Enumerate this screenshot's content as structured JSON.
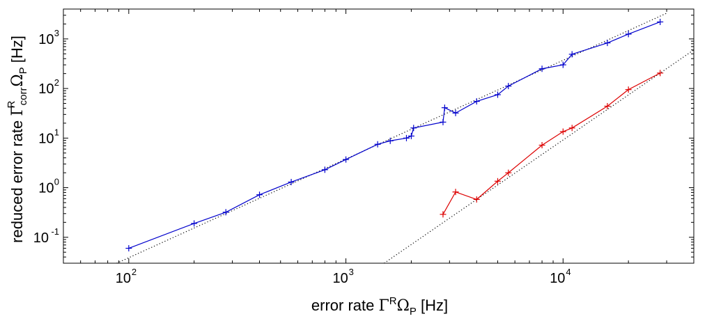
{
  "chart_data": {
    "type": "line",
    "x_scale": "log",
    "y_scale": "log",
    "xlim": [
      50,
      40000
    ],
    "ylim": [
      0.03,
      4000
    ],
    "grid": false,
    "legend": "none",
    "xlabel": {
      "pre": "error rate ",
      "gamma": "Γ",
      "sup": "R",
      "omega": "Ω",
      "sub": "P",
      "post": " [Hz]"
    },
    "ylabel": {
      "pre": "reduced error rate ",
      "gamma": "Γ",
      "sub1": "corr",
      "sup1": "R",
      "omega": "Ω",
      "sub2": "P",
      "post": " [Hz]"
    },
    "xticks": [
      {
        "value": 100,
        "base": "10",
        "exp": "2"
      },
      {
        "value": 1000,
        "base": "10",
        "exp": "3"
      },
      {
        "value": 10000,
        "base": "10",
        "exp": "4"
      }
    ],
    "yticks": [
      {
        "value": 0.1,
        "base": "10",
        "exp": "-1"
      },
      {
        "value": 1,
        "base": "10",
        "exp": "0"
      },
      {
        "value": 10,
        "base": "10",
        "exp": "1"
      },
      {
        "value": 100,
        "base": "10",
        "exp": "2"
      },
      {
        "value": 1000,
        "base": "10",
        "exp": "3"
      }
    ],
    "series": [
      {
        "color": "#0000cc",
        "marker": "+",
        "x": [
          100,
          200,
          280,
          400,
          560,
          800,
          1000,
          1400,
          1600,
          1900,
          2000,
          2050,
          2800,
          2850,
          3200,
          4000,
          5000,
          5600,
          8000,
          10000,
          11000,
          16000,
          20000,
          28000
        ],
        "y": [
          0.06,
          0.19,
          0.32,
          0.72,
          1.3,
          2.3,
          3.7,
          7.5,
          8.8,
          10,
          11,
          16,
          21,
          41,
          32,
          55,
          75,
          112,
          250,
          300,
          490,
          830,
          1250,
          2200
        ]
      },
      {
        "color": "#dd0000",
        "marker": "+",
        "x": [
          2800,
          3200,
          4000,
          5000,
          5600,
          8000,
          10000,
          11000,
          16000,
          20000,
          28000
        ],
        "y": [
          0.29,
          0.82,
          0.58,
          1.35,
          2.0,
          7.2,
          13.5,
          16,
          44,
          95,
          205
        ]
      }
    ],
    "reference_lines": [
      {
        "style": "dotted",
        "color": "#000000",
        "x": [
          88,
          30000
        ],
        "y": [
          0.03,
          3300
        ]
      },
      {
        "style": "dotted",
        "color": "#000000",
        "x": [
          1500,
          40000
        ],
        "y": [
          0.03,
          600
        ]
      }
    ]
  }
}
